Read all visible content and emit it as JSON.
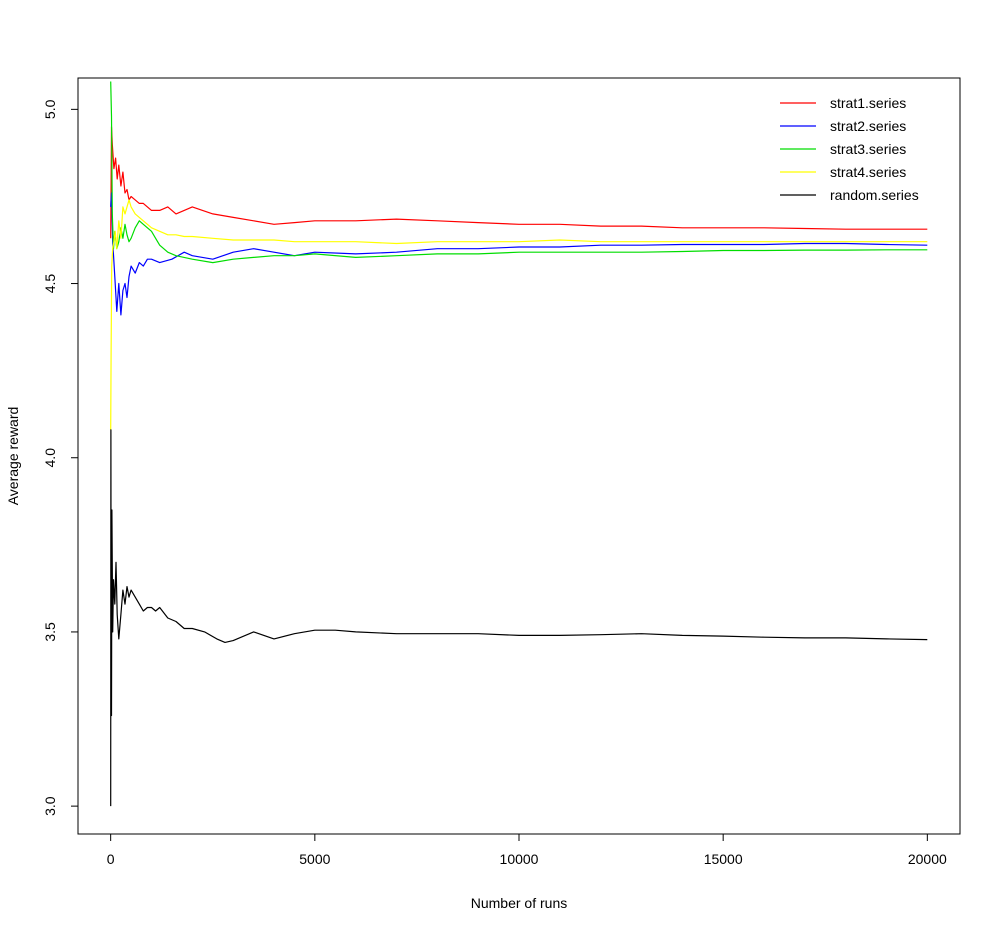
{
  "chart_data": {
    "type": "line",
    "title": "",
    "xlabel": "Number of runs",
    "ylabel": "Average reward",
    "xlim": [
      -800,
      20800
    ],
    "ylim": [
      2.92,
      5.09
    ],
    "xticks": [
      0,
      5000,
      10000,
      15000,
      20000
    ],
    "xtick_labels": [
      "0",
      "5000",
      "10000",
      "15000",
      "20000"
    ],
    "yticks": [
      3.0,
      3.5,
      4.0,
      4.5,
      5.0
    ],
    "ytick_labels": [
      "3.0",
      "3.5",
      "4.0",
      "4.5",
      "5.0"
    ],
    "grid": false,
    "legend_position": "top-right",
    "series": [
      {
        "name": "strat1.series",
        "color": "#ff0000",
        "x": [
          1,
          20,
          40,
          80,
          120,
          160,
          200,
          250,
          300,
          350,
          400,
          450,
          500,
          600,
          700,
          800,
          900,
          1000,
          1200,
          1400,
          1600,
          1800,
          2000,
          2500,
          3000,
          3500,
          4000,
          4500,
          5000,
          6000,
          7000,
          8000,
          9000,
          10000,
          11000,
          12000,
          13000,
          14000,
          15000,
          16000,
          17000,
          18000,
          19000,
          20000
        ],
        "y": [
          4.63,
          4.95,
          4.9,
          4.83,
          4.86,
          4.8,
          4.84,
          4.78,
          4.82,
          4.76,
          4.77,
          4.74,
          4.75,
          4.74,
          4.73,
          4.73,
          4.72,
          4.71,
          4.71,
          4.72,
          4.7,
          4.71,
          4.72,
          4.7,
          4.69,
          4.68,
          4.67,
          4.675,
          4.68,
          4.68,
          4.685,
          4.68,
          4.675,
          4.67,
          4.67,
          4.665,
          4.665,
          4.66,
          4.66,
          4.66,
          4.658,
          4.656,
          4.656,
          4.656
        ]
      },
      {
        "name": "strat2.series",
        "color": "#0000ff",
        "x": [
          1,
          20,
          50,
          100,
          150,
          200,
          250,
          300,
          350,
          400,
          450,
          500,
          600,
          700,
          800,
          900,
          1000,
          1200,
          1500,
          1800,
          2000,
          2500,
          3000,
          3500,
          4000,
          4500,
          5000,
          6000,
          7000,
          8000,
          9000,
          10000,
          11000,
          12000,
          13000,
          14000,
          15000,
          16000,
          17000,
          18000,
          19000,
          20000
        ],
        "y": [
          4.72,
          4.76,
          4.62,
          4.52,
          4.42,
          4.5,
          4.41,
          4.48,
          4.5,
          4.46,
          4.52,
          4.55,
          4.53,
          4.56,
          4.55,
          4.57,
          4.57,
          4.56,
          4.57,
          4.59,
          4.58,
          4.57,
          4.59,
          4.6,
          4.59,
          4.58,
          4.59,
          4.585,
          4.59,
          4.6,
          4.6,
          4.605,
          4.605,
          4.61,
          4.61,
          4.612,
          4.612,
          4.612,
          4.615,
          4.615,
          4.612,
          4.61
        ]
      },
      {
        "name": "strat3.series",
        "color": "#00dd00",
        "x": [
          1,
          20,
          40,
          70,
          100,
          150,
          200,
          250,
          300,
          350,
          400,
          450,
          500,
          600,
          700,
          800,
          900,
          1000,
          1100,
          1200,
          1400,
          1600,
          2000,
          2500,
          3000,
          3500,
          4000,
          4500,
          5000,
          6000,
          7000,
          8000,
          9000,
          10000,
          11000,
          12000,
          13000,
          14000,
          15000,
          16000,
          17000,
          18000,
          19000,
          20000
        ],
        "y": [
          5.08,
          4.98,
          4.7,
          4.6,
          4.65,
          4.6,
          4.62,
          4.66,
          4.63,
          4.67,
          4.64,
          4.62,
          4.63,
          4.66,
          4.68,
          4.67,
          4.66,
          4.65,
          4.63,
          4.61,
          4.59,
          4.58,
          4.57,
          4.56,
          4.57,
          4.575,
          4.58,
          4.58,
          4.585,
          4.575,
          4.58,
          4.585,
          4.585,
          4.59,
          4.59,
          4.59,
          4.59,
          4.592,
          4.595,
          4.595,
          4.596,
          4.596,
          4.597,
          4.597
        ]
      },
      {
        "name": "strat4.series",
        "color": "#ffff00",
        "x": [
          1,
          10,
          25,
          50,
          80,
          110,
          150,
          200,
          250,
          300,
          350,
          400,
          450,
          500,
          600,
          700,
          800,
          900,
          1000,
          1200,
          1400,
          1600,
          1800,
          2000,
          2500,
          3000,
          3500,
          4000,
          4500,
          5000,
          6000,
          7000,
          8000,
          9000,
          10000,
          11000,
          12000,
          13000,
          14000,
          15000,
          16000,
          17000,
          18000,
          19000,
          20000
        ],
        "y": [
          4.08,
          4.3,
          4.55,
          4.6,
          4.62,
          4.65,
          4.6,
          4.68,
          4.63,
          4.72,
          4.7,
          4.72,
          4.74,
          4.72,
          4.7,
          4.69,
          4.68,
          4.67,
          4.66,
          4.65,
          4.64,
          4.64,
          4.635,
          4.635,
          4.63,
          4.625,
          4.625,
          4.625,
          4.62,
          4.62,
          4.62,
          4.615,
          4.62,
          4.62,
          4.62,
          4.625,
          4.62,
          4.62,
          4.62,
          4.62,
          4.62,
          4.62,
          4.62,
          4.62,
          4.62
        ]
      },
      {
        "name": "random.series",
        "color": "#000000",
        "x": [
          1,
          5,
          10,
          20,
          30,
          50,
          70,
          100,
          130,
          160,
          200,
          250,
          300,
          350,
          400,
          450,
          500,
          600,
          700,
          800,
          900,
          1000,
          1100,
          1200,
          1400,
          1600,
          1800,
          2000,
          2300,
          2600,
          2800,
          3000,
          3500,
          4000,
          4500,
          5000,
          5500,
          6000,
          7000,
          8000,
          9000,
          10000,
          11000,
          12000,
          13000,
          14000,
          15000,
          16000,
          17000,
          18000,
          19000,
          20000
        ],
        "y": [
          3.0,
          4.08,
          3.55,
          3.26,
          3.85,
          3.5,
          3.65,
          3.58,
          3.7,
          3.55,
          3.48,
          3.55,
          3.62,
          3.58,
          3.63,
          3.6,
          3.62,
          3.6,
          3.58,
          3.56,
          3.57,
          3.57,
          3.56,
          3.57,
          3.54,
          3.53,
          3.51,
          3.51,
          3.5,
          3.48,
          3.47,
          3.475,
          3.5,
          3.48,
          3.495,
          3.505,
          3.505,
          3.5,
          3.495,
          3.495,
          3.495,
          3.49,
          3.49,
          3.492,
          3.495,
          3.49,
          3.488,
          3.485,
          3.483,
          3.483,
          3.48,
          3.478
        ]
      }
    ]
  }
}
